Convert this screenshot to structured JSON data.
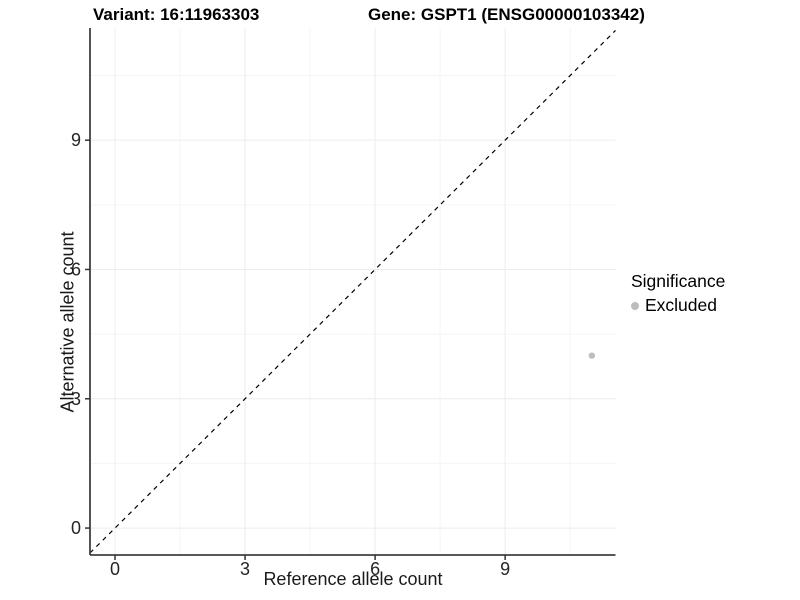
{
  "titles": {
    "left": "Variant: 16:11963303",
    "right": "Gene: GSPT1 (ENSG00000103342)"
  },
  "axes": {
    "x_label": "Reference allele count",
    "y_label": "Alternative allele count"
  },
  "legend": {
    "title": "Significance",
    "items": [
      {
        "label": "Excluded",
        "color": "#bdbdbd"
      }
    ]
  },
  "chart_data": {
    "type": "scatter",
    "title": "Variant: 16:11963303 — Gene: GSPT1 (ENSG00000103342)",
    "xlabel": "Reference allele count",
    "ylabel": "Alternative allele count",
    "xlim": [
      -0.577,
      11.546
    ],
    "ylim": [
      -0.625,
      11.603
    ],
    "x_ticks": [
      0,
      3,
      6,
      9
    ],
    "y_ticks": [
      0,
      3,
      6,
      9
    ],
    "x_minor_ticks": [
      1.5,
      4.5,
      7.5,
      10.5
    ],
    "y_minor_ticks": [
      1.5,
      4.5,
      7.5,
      10.5
    ],
    "grid": true,
    "legend_position": "right",
    "reference_line": {
      "kind": "identity",
      "slope": 1,
      "intercept": 0,
      "linetype": "dashed",
      "color": "#000000"
    },
    "series": [
      {
        "name": "Excluded",
        "color": "#bdbdbd",
        "points": [
          {
            "x": 11,
            "y": 4
          }
        ]
      }
    ],
    "style": {
      "axis_line_color": "#404040",
      "tick_color": "#333333",
      "tick_label_color": "#262626",
      "grid_major_color": "#ececec",
      "grid_minor_color": "#f5f5f5",
      "background": "#ffffff"
    }
  }
}
